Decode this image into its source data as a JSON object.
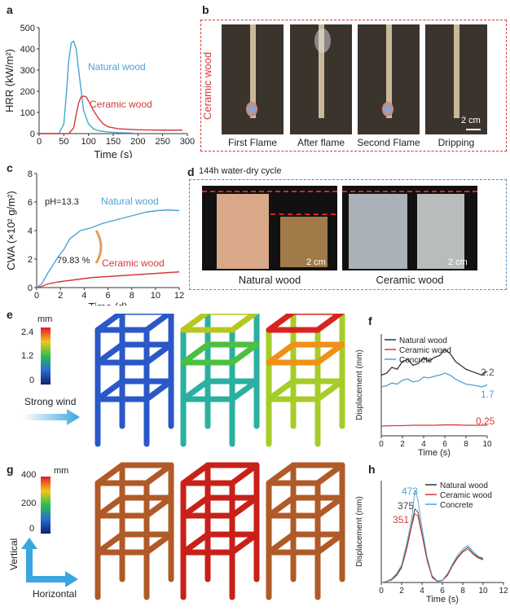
{
  "panels": {
    "a": "a",
    "b": "b",
    "c": "c",
    "d": "d",
    "e": "e",
    "f": "f",
    "g": "g",
    "h": "h"
  },
  "colors": {
    "natural": "#4aa3d6",
    "ceramic": "#d43a3a",
    "concrete": "#4aa3d6",
    "black": "#333333"
  },
  "panel_b": {
    "side_label": "Ceramic wood",
    "captions": [
      "First Flame",
      "After flame",
      "Second Flame",
      "Dripping"
    ],
    "scale": "2 cm"
  },
  "panel_d": {
    "title": "144h water-dry cycle",
    "captions": [
      "Natural wood",
      "Ceramic wood"
    ],
    "scale_left": "2 cm",
    "scale_right": "2 cm"
  },
  "panel_e": {
    "legend_unit": "mm",
    "legend_ticks": [
      "2.4",
      "1.2",
      "0"
    ],
    "arrow_label": "Strong wind"
  },
  "panel_g": {
    "legend_unit": "mm",
    "legend_ticks": [
      "400",
      "200",
      "0"
    ],
    "vertical_label": "Vertical",
    "horizontal_label": "Horizontal"
  },
  "chart_data": [
    {
      "id": "a",
      "type": "line",
      "xlabel": "Time (s)",
      "ylabel": "HRR (kW/m²)",
      "xlim": [
        0,
        300
      ],
      "ylim": [
        0,
        550
      ],
      "xticks": [
        "0",
        "50",
        "100",
        "150",
        "200",
        "250",
        "300"
      ],
      "yticks": [
        "0",
        "100",
        "200",
        "300",
        "400",
        "500"
      ],
      "series": [
        {
          "name": "Natural wood",
          "x": [
            0,
            40,
            50,
            55,
            60,
            65,
            70,
            75,
            80,
            90,
            100,
            110,
            120,
            140,
            160,
            190
          ],
          "y": [
            0,
            0,
            50,
            200,
            380,
            470,
            480,
            440,
            330,
            120,
            50,
            25,
            15,
            8,
            5,
            3
          ]
        },
        {
          "name": "Ceramic wood",
          "x": [
            0,
            60,
            70,
            75,
            80,
            85,
            90,
            95,
            100,
            110,
            120,
            130,
            140,
            160,
            200,
            250,
            290
          ],
          "y": [
            0,
            0,
            30,
            100,
            160,
            190,
            195,
            190,
            170,
            120,
            80,
            50,
            35,
            25,
            20,
            18,
            18
          ]
        }
      ]
    },
    {
      "id": "c",
      "type": "line",
      "xlabel": "Time (d)",
      "ylabel": "CWA (×10² g/m²)",
      "xlim": [
        0,
        13
      ],
      "ylim": [
        0,
        8
      ],
      "xticks": [
        "0",
        "2",
        "4",
        "6",
        "8",
        "10",
        "12"
      ],
      "yticks": [
        "0",
        "2",
        "4",
        "6",
        "8"
      ],
      "annotation_ph": "pH=13.3",
      "annotation_pct": "79.83 %",
      "series": [
        {
          "name": "Natural wood",
          "x": [
            0,
            0.5,
            1,
            1.5,
            2,
            2.5,
            3,
            4,
            5,
            6,
            7,
            8,
            9,
            10,
            11,
            12,
            13
          ],
          "y": [
            0,
            0.3,
            1.0,
            1.6,
            2.2,
            2.7,
            3.4,
            4.0,
            4.2,
            4.5,
            4.7,
            4.9,
            5.1,
            5.3,
            5.4,
            5.45,
            5.4
          ]
        },
        {
          "name": "Ceramic wood",
          "x": [
            0,
            0.5,
            1,
            2,
            3,
            4,
            5,
            6,
            7,
            8,
            9,
            10,
            11,
            12,
            13
          ],
          "y": [
            0,
            0.1,
            0.25,
            0.4,
            0.5,
            0.6,
            0.7,
            0.75,
            0.8,
            0.85,
            0.9,
            0.95,
            1.0,
            1.05,
            1.1
          ]
        }
      ]
    },
    {
      "id": "f",
      "type": "line",
      "xlabel": "Time (s)",
      "ylabel": "Displacement (mm)",
      "xlim": [
        0,
        10
      ],
      "xticks": [
        "0",
        "2",
        "4",
        "6",
        "8",
        "10"
      ],
      "series": [
        {
          "name": "Natural wood",
          "x": [
            0,
            0.5,
            1,
            1.5,
            2,
            2.5,
            3,
            3.5,
            4,
            4.5,
            5,
            5.5,
            6,
            6.5,
            7,
            7.5,
            8,
            8.5,
            9,
            9.5,
            10
          ],
          "y": [
            1.55,
            1.6,
            1.75,
            1.7,
            1.9,
            1.95,
            1.8,
            1.85,
            2.0,
            1.9,
            2.0,
            2.05,
            2.2,
            2.1,
            1.9,
            1.8,
            1.7,
            1.65,
            1.6,
            1.55,
            1.65
          ]
        },
        {
          "name": "Ceramic wood",
          "x": [
            0,
            1,
            2,
            3,
            4,
            5,
            6,
            7,
            8,
            9,
            10
          ],
          "y": [
            0.25,
            0.26,
            0.26,
            0.27,
            0.27,
            0.27,
            0.28,
            0.28,
            0.27,
            0.27,
            0.27
          ]
        },
        {
          "name": "Concrete",
          "x": [
            0,
            0.5,
            1,
            1.5,
            2,
            2.5,
            3,
            3.5,
            4,
            4.5,
            5,
            5.5,
            6,
            6.5,
            7,
            7.5,
            8,
            8.5,
            9,
            9.5,
            10
          ],
          "y": [
            1.25,
            1.28,
            1.35,
            1.32,
            1.42,
            1.45,
            1.38,
            1.4,
            1.5,
            1.48,
            1.52,
            1.55,
            1.6,
            1.55,
            1.45,
            1.38,
            1.32,
            1.3,
            1.28,
            1.25,
            1.3
          ]
        }
      ],
      "labels": [
        "2.2",
        "1.7",
        "0.25"
      ],
      "legend": [
        "Natural wood",
        "Ceramic wood",
        "Concrete"
      ]
    },
    {
      "id": "h",
      "type": "line",
      "xlabel": "Time (s)",
      "ylabel": "Displacement (mm)",
      "xlim": [
        0,
        12
      ],
      "xticks": [
        "0",
        "2",
        "4",
        "6",
        "8",
        "10",
        "12"
      ],
      "series": [
        {
          "name": "Natural wood",
          "x": [
            0,
            0.5,
            1,
            1.5,
            2,
            2.5,
            3,
            3.3,
            3.6,
            4,
            4.5,
            5,
            5.5,
            6,
            6.5,
            7,
            7.5,
            8,
            8.5,
            9,
            9.5,
            10
          ],
          "y": [
            0,
            5,
            15,
            40,
            80,
            180,
            300,
            375,
            360,
            250,
            120,
            30,
            5,
            10,
            40,
            90,
            130,
            160,
            180,
            150,
            130,
            120
          ]
        },
        {
          "name": "Ceramic wood",
          "x": [
            0,
            0.5,
            1,
            1.5,
            2,
            2.5,
            3,
            3.3,
            3.6,
            4,
            4.5,
            5,
            5.5,
            6,
            6.5,
            7,
            7.5,
            8,
            8.5,
            9,
            9.5,
            10
          ],
          "y": [
            0,
            5,
            12,
            35,
            75,
            170,
            290,
            351,
            340,
            240,
            110,
            25,
            5,
            10,
            35,
            85,
            125,
            155,
            170,
            145,
            125,
            115
          ]
        },
        {
          "name": "Concrete",
          "x": [
            0,
            0.5,
            1,
            1.5,
            2,
            2.5,
            3,
            3.3,
            3.6,
            4,
            4.5,
            5,
            5.5,
            6,
            6.5,
            7,
            7.5,
            8,
            8.5,
            9,
            9.5,
            10
          ],
          "y": [
            0,
            6,
            18,
            45,
            90,
            200,
            330,
            473,
            420,
            280,
            130,
            35,
            8,
            12,
            45,
            95,
            140,
            170,
            190,
            160,
            135,
            125
          ]
        }
      ],
      "labels": [
        "473",
        "375",
        "351"
      ],
      "legend": [
        "Natural wood",
        "Ceramic wood",
        "Concrete"
      ]
    }
  ]
}
